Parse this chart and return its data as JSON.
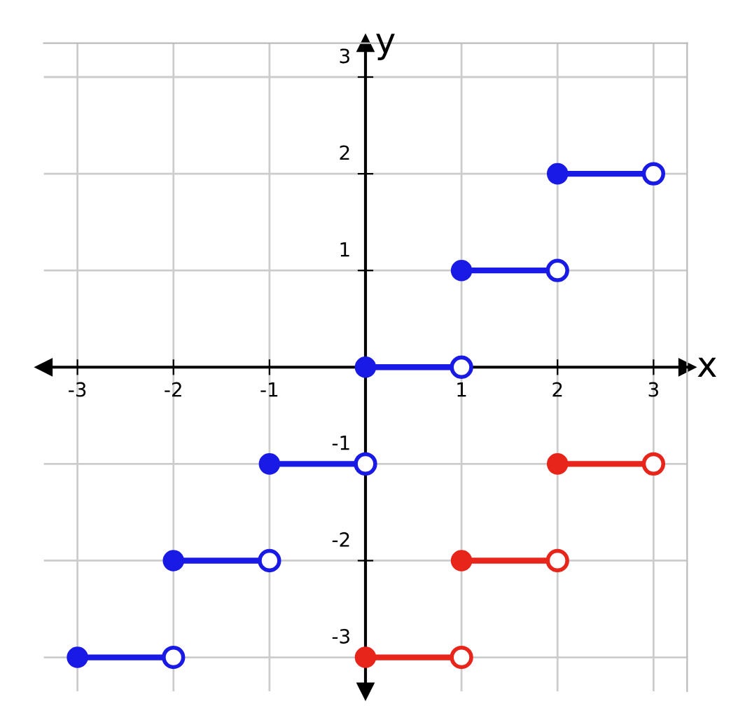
{
  "chart_data": {
    "type": "line",
    "xlabel": "x",
    "ylabel": "y",
    "xlim": [
      -3.35,
      3.35
    ],
    "ylim": [
      -3.35,
      3.35
    ],
    "xticks": [
      -3,
      -2,
      -1,
      1,
      2,
      3
    ],
    "yticks": [
      -3,
      -2,
      -1,
      1,
      2,
      3
    ],
    "grid": true,
    "marker": "circle",
    "line_style": "solid",
    "series": [
      {
        "color": "#1a1ae6",
        "x": [
          -3,
          -2
        ],
        "values": [
          -3,
          -3
        ]
      },
      {
        "color": "#1a1ae6",
        "x": [
          -2,
          -1
        ],
        "values": [
          -2,
          -2
        ]
      },
      {
        "color": "#1a1ae6",
        "x": [
          -1,
          0
        ],
        "values": [
          -1,
          -1
        ]
      },
      {
        "color": "#1a1ae6",
        "x": [
          0,
          1
        ],
        "values": [
          0,
          0
        ]
      },
      {
        "color": "#1a1ae6",
        "x": [
          1,
          2
        ],
        "values": [
          1,
          1
        ]
      },
      {
        "color": "#1a1ae6",
        "x": [
          2,
          3
        ],
        "values": [
          2,
          2
        ]
      },
      {
        "color": "#e8251a",
        "x": [
          0,
          1
        ],
        "values": [
          -3,
          -3
        ]
      },
      {
        "color": "#e8251a",
        "x": [
          1,
          2
        ],
        "values": [
          -2,
          -2
        ]
      },
      {
        "color": "#e8251a",
        "x": [
          2,
          3
        ],
        "values": [
          -1,
          -1
        ]
      }
    ]
  }
}
